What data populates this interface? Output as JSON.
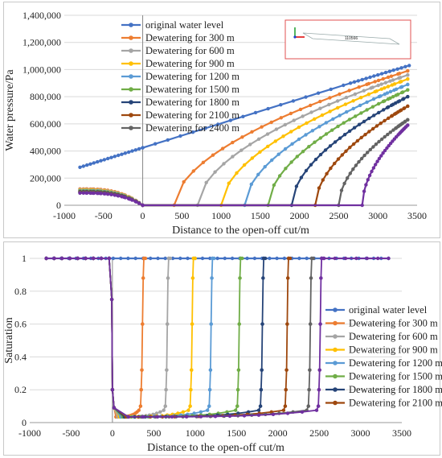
{
  "charts": [
    {
      "chart_data": {
        "type": "line",
        "ylabel": "Water pressure/Pa",
        "xlabel": "Distance to the open-off cut/m",
        "xlim": [
          -1000,
          3500
        ],
        "ylim": [
          0,
          1400000
        ],
        "x_ticks": [
          "-1000",
          "-500",
          "0",
          "500",
          "1000",
          "1500",
          "2000",
          "2500",
          "3000",
          "3500"
        ],
        "y_ticks": [
          "0",
          "200,000",
          "400,000",
          "600,000",
          "800,000",
          "1,000,000",
          "1,200,000",
          "1,400,000"
        ],
        "grid": "horizontal",
        "legend_position": "top-left",
        "series": [
          {
            "name": "original water level",
            "color": "#4472c4",
            "dewatering": null
          },
          {
            "name": "Dewatering for 300 m",
            "color": "#ed7d31",
            "dewatering": 300
          },
          {
            "name": "Dewatering for 600 m",
            "color": "#a5a5a5",
            "dewatering": 600
          },
          {
            "name": "Dewatering for 900 m",
            "color": "#ffc000",
            "dewatering": 900
          },
          {
            "name": "Dewatering for 1200 m",
            "color": "#5b9bd5",
            "dewatering": 1200
          },
          {
            "name": "Dewatering for 1500 m",
            "color": "#70ad47",
            "dewatering": 1500
          },
          {
            "name": "Dewatering for 1800 m",
            "color": "#264478",
            "dewatering": 1800
          },
          {
            "name": "Dewatering for 2100 m",
            "color": "#9e480e",
            "dewatering": 2100
          },
          {
            "name": "Dewatering for 2400 m",
            "color": "#636363",
            "dewatering": 2400
          },
          {
            "name": "",
            "color": "#7030a0",
            "dewatering": 2700
          }
        ],
        "original_line": {
          "x": [
            -800,
            2650,
            3400
          ],
          "y": [
            280000,
            900000,
            1030000
          ]
        },
        "end_values": [
          1030000,
          990000,
          960000,
          930000,
          890000,
          850000,
          800000,
          730000,
          630000,
          590000
        ],
        "left_values": [
          110000,
          120000,
          115000,
          112000,
          108000,
          104000,
          100000,
          97000,
          94000,
          90000
        ]
      },
      "inset": {
        "label": "110566"
      }
    },
    {
      "chart_data": {
        "type": "line",
        "ylabel": "Saturation",
        "xlabel": "Distance to the open-off cut/m",
        "xlim": [
          -1000,
          3500
        ],
        "ylim": [
          0,
          1
        ],
        "x_ticks": [
          "-1000",
          "-500",
          "0",
          "500",
          "1000",
          "1500",
          "2000",
          "2500",
          "3000",
          "3500"
        ],
        "y_ticks": [
          "0",
          "0.2",
          "0.4",
          "0.6",
          "0.8",
          "1"
        ],
        "grid": "horizontal",
        "legend_position": "right",
        "series": [
          {
            "name": "original water level",
            "color": "#4472c4",
            "front": null
          },
          {
            "name": "Dewatering for 300 m",
            "color": "#ed7d31",
            "front": 380
          },
          {
            "name": "Dewatering for 600 m",
            "color": "#a5a5a5",
            "front": 680
          },
          {
            "name": "Dewatering for 900 m",
            "color": "#ffc000",
            "front": 980
          },
          {
            "name": "Dewatering for 1200 m",
            "color": "#5b9bd5",
            "front": 1210
          },
          {
            "name": "Dewatering for 1500 m",
            "color": "#70ad47",
            "front": 1550
          },
          {
            "name": "Dewatering for 1800 m",
            "color": "#264478",
            "front": 1830
          },
          {
            "name": "Dewatering for 2100 m",
            "color": "#9e480e",
            "front": 2130
          },
          {
            "name": "",
            "color": "#636363",
            "front": 2410
          },
          {
            "name": "",
            "color": "#7030a0",
            "front": 2530
          }
        ],
        "residual_saturation": 0.035,
        "full_saturation": 1.0,
        "data_x_range": [
          -800,
          3380
        ]
      }
    }
  ]
}
